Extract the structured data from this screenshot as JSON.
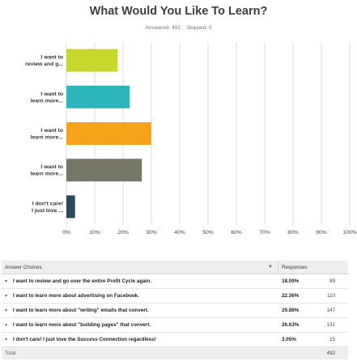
{
  "title": "What Would You Like To Learn?",
  "answered_label": "Answered: 492",
  "skipped_label": "Skipped: 0",
  "chart_data": {
    "type": "bar",
    "orientation": "horizontal",
    "categories": [
      "I want to review and g...",
      "I want to learn more...",
      "I want to learn more...",
      "I want to learn more...",
      "I don't care! I just love ..."
    ],
    "category_lines": [
      [
        "I want to",
        "review and g..."
      ],
      [
        "I want to",
        "learn more..."
      ],
      [
        "I want to",
        "learn more..."
      ],
      [
        "I want to",
        "learn more..."
      ],
      [
        "I don't care!",
        "I just love ..."
      ]
    ],
    "values": [
      18.09,
      22.36,
      29.88,
      26.63,
      3.05
    ],
    "colors": [
      "#c4d82e",
      "#2db5bb",
      "#f5a31a",
      "#767766",
      "#2d4a5a"
    ],
    "xlim": [
      0,
      100
    ],
    "ticks": [
      "0%",
      "10%",
      "20%",
      "30%",
      "40%",
      "50%",
      "60%",
      "70%",
      "80%",
      "90%",
      "100%"
    ],
    "grid": true
  },
  "table": {
    "header_choice": "Answer Choices",
    "header_responses": "Responses",
    "rows": [
      {
        "choice": "I want to review and go over the entire Profit Cycle again.",
        "pct": "18.09%",
        "count": "89"
      },
      {
        "choice": "I want to learn more about advertising on Facebook.",
        "pct": "22.36%",
        "count": "110"
      },
      {
        "choice": "I want to learn more about \"writing\" emails that convert.",
        "pct": "29.88%",
        "count": "147"
      },
      {
        "choice": "I want to learn more about \"building pages\" that convert.",
        "pct": "26.63%",
        "count": "131"
      },
      {
        "choice": "I don't care! I just love the Success Connection regardless!",
        "pct": "3.05%",
        "count": "15"
      }
    ],
    "total_label": "Total",
    "total_count": "492"
  }
}
